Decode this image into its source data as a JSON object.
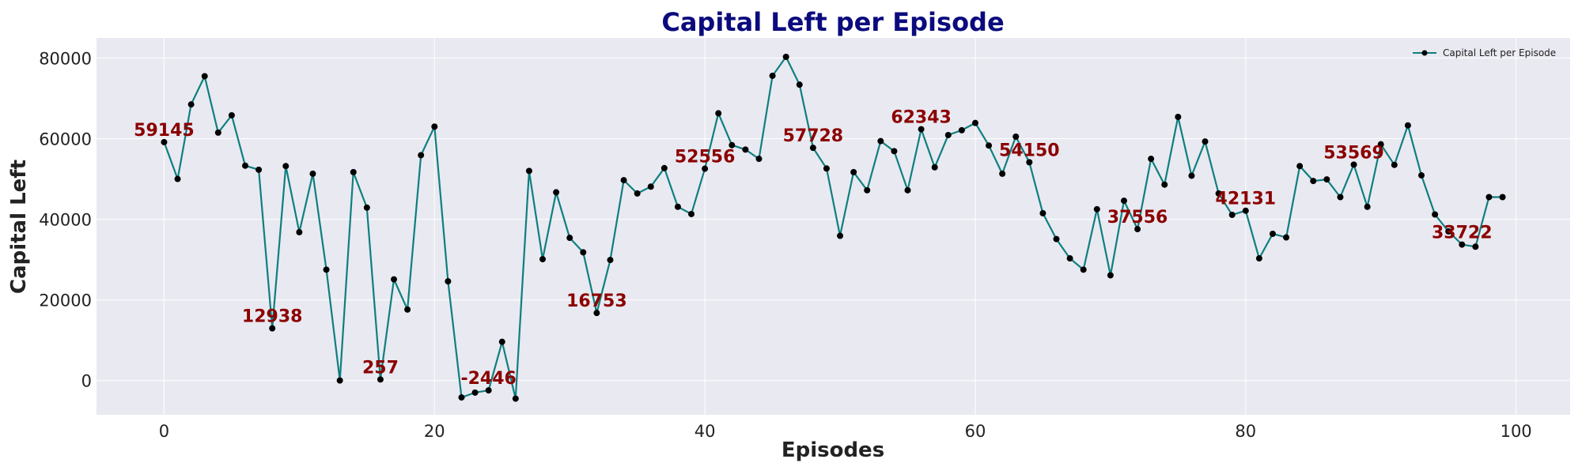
{
  "chart_data": {
    "type": "line",
    "title": "Capital Left per Episode",
    "xlabel": "Episodes",
    "ylabel": "Capital Left",
    "xlim": [
      -5,
      104
    ],
    "ylim": [
      -8500,
      85000
    ],
    "xticks": [
      0,
      20,
      40,
      60,
      80,
      100
    ],
    "yticks": [
      0,
      20000,
      40000,
      60000,
      80000
    ],
    "grid": true,
    "legend_position": "top-right",
    "series": [
      {
        "name": "Capital Left per Episode",
        "x": [
          0,
          1,
          2,
          3,
          4,
          5,
          6,
          7,
          8,
          9,
          10,
          11,
          12,
          13,
          14,
          15,
          16,
          17,
          18,
          19,
          20,
          21,
          22,
          23,
          24,
          25,
          26,
          27,
          28,
          29,
          30,
          31,
          32,
          33,
          34,
          35,
          36,
          37,
          38,
          39,
          40,
          41,
          42,
          43,
          44,
          45,
          46,
          47,
          48,
          49,
          50,
          51,
          52,
          53,
          54,
          55,
          56,
          57,
          58,
          59,
          60,
          61,
          62,
          63,
          64,
          65,
          66,
          67,
          68,
          69,
          70,
          71,
          72,
          73,
          74,
          75,
          76,
          77,
          78,
          79,
          80,
          81,
          82,
          83,
          84,
          85,
          86,
          87,
          88,
          89,
          90,
          91,
          92,
          93,
          94,
          95,
          96,
          97,
          98,
          99
        ],
        "values": [
          59145,
          50000,
          68500,
          75500,
          61500,
          65800,
          53300,
          52300,
          12938,
          53200,
          36800,
          51300,
          27500,
          0,
          51700,
          42900,
          257,
          25100,
          17600,
          55900,
          63000,
          24600,
          -4200,
          -3000,
          -2446,
          9600,
          -4500,
          52000,
          30100,
          46700,
          35400,
          31800,
          16753,
          29900,
          49700,
          46400,
          48100,
          52700,
          43100,
          41300,
          52556,
          66300,
          58400,
          57300,
          55000,
          75600,
          80300,
          73400,
          57728,
          52600,
          35900,
          51700,
          47200,
          59400,
          56900,
          47200,
          62343,
          52900,
          60900,
          62100,
          63900,
          58300,
          51300,
          60500,
          54150,
          41500,
          35100,
          30300,
          27500,
          42500,
          26100,
          44600,
          37556,
          55000,
          48600,
          65400,
          50800,
          59300,
          46400,
          41100,
          42131,
          30300,
          36400,
          35500,
          53200,
          49500,
          49900,
          45500,
          53569,
          43100,
          58600,
          53500,
          63300,
          50900,
          41200,
          37000,
          33722,
          33200,
          45500,
          45500
        ]
      }
    ],
    "annotations": [
      {
        "x": 0,
        "y": 59145,
        "text": "59145"
      },
      {
        "x": 8,
        "y": 12938,
        "text": "12938"
      },
      {
        "x": 16,
        "y": 257,
        "text": "257"
      },
      {
        "x": 24,
        "y": -2446,
        "text": "-2446"
      },
      {
        "x": 32,
        "y": 16753,
        "text": "16753"
      },
      {
        "x": 40,
        "y": 52556,
        "text": "52556"
      },
      {
        "x": 48,
        "y": 57728,
        "text": "57728"
      },
      {
        "x": 56,
        "y": 62343,
        "text": "62343"
      },
      {
        "x": 64,
        "y": 54150,
        "text": "54150"
      },
      {
        "x": 72,
        "y": 37556,
        "text": "37556"
      },
      {
        "x": 80,
        "y": 42131,
        "text": "42131"
      },
      {
        "x": 88,
        "y": 53569,
        "text": "53569"
      },
      {
        "x": 96,
        "y": 33722,
        "text": "33722"
      }
    ],
    "colors": {
      "line": "#0e7f7f",
      "marker": "#000000",
      "title": "#0b0b7e",
      "annotation": "#8b0000",
      "plot_background": "#e9e9f1",
      "grid": "#ffffff"
    }
  }
}
